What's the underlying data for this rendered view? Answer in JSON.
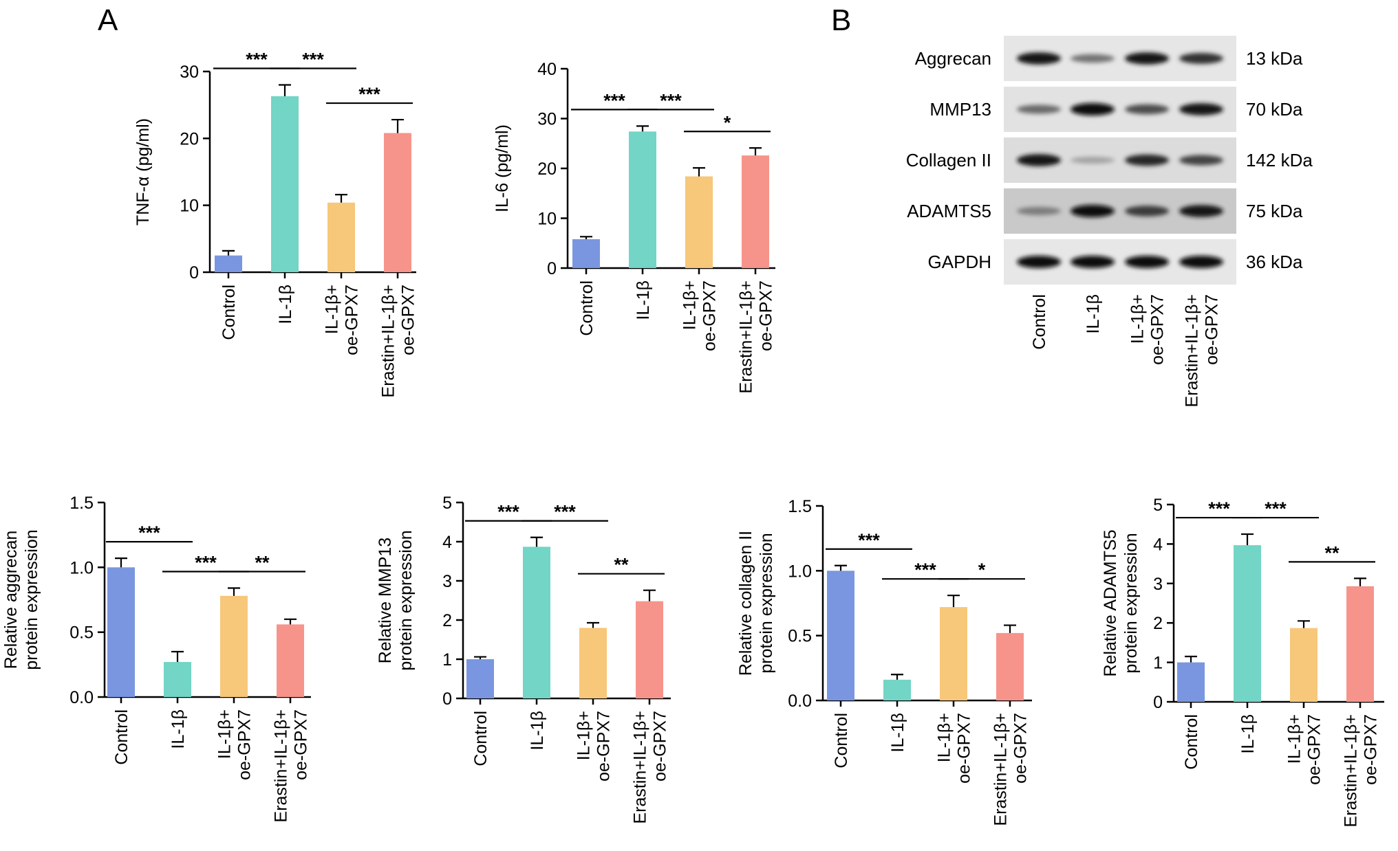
{
  "panels": {
    "a": "A",
    "b": "B"
  },
  "colors": {
    "Control": "#7a96e0",
    "IL-1β": "#72d5c6",
    "IL-1β+\noe-GPX7": "#f7c77a",
    "Erastin+IL-1β+\noe-GPX7": "#f6948b"
  },
  "chart_data": [
    {
      "type": "bar",
      "ylabel": "TNF-α (pg/ml)",
      "categories": [
        "Control",
        "IL-1β",
        "IL-1β+\noe-GPX7",
        "Erastin+IL-1β+\noe-GPX7"
      ],
      "values": [
        2.5,
        26.3,
        10.4,
        20.8
      ],
      "errors": [
        0.7,
        1.7,
        1.2,
        2.0
      ],
      "ylim": [
        0,
        30
      ],
      "yticks": [
        0,
        10,
        20,
        30
      ],
      "significance": [
        {
          "from": 0,
          "to": 1,
          "label": "***"
        },
        {
          "from": 1,
          "to": 2,
          "label": "***"
        },
        {
          "from": 2,
          "to": 3,
          "label": "***"
        }
      ]
    },
    {
      "type": "bar",
      "ylabel": "IL-6 (pg/ml)",
      "categories": [
        "Control",
        "IL-1β",
        "IL-1β+\noe-GPX7",
        "Erastin+IL-1β+\noe-GPX7"
      ],
      "values": [
        5.8,
        27.4,
        18.4,
        22.6
      ],
      "errors": [
        0.5,
        1.1,
        1.7,
        1.5
      ],
      "ylim": [
        0,
        40
      ],
      "yticks": [
        0,
        10,
        20,
        30,
        40
      ],
      "significance": [
        {
          "from": 0,
          "to": 1,
          "label": "***"
        },
        {
          "from": 1,
          "to": 2,
          "label": "***"
        },
        {
          "from": 2,
          "to": 3,
          "label": "*"
        }
      ]
    },
    {
      "type": "bar",
      "ylabel": "Relative aggrecan\nprotein expression",
      "categories": [
        "Control",
        "IL-1β",
        "IL-1β+\noe-GPX7",
        "Erastin+IL-1β+\noe-GPX7"
      ],
      "values": [
        1.0,
        0.27,
        0.78,
        0.56
      ],
      "errors": [
        0.07,
        0.08,
        0.06,
        0.04
      ],
      "ylim": [
        0,
        1.5
      ],
      "yticks": [
        "0.0",
        "0.5",
        "1.0",
        "1.5"
      ],
      "significance": [
        {
          "from": 0,
          "to": 1,
          "label": "***"
        },
        {
          "from": 1,
          "to": 2,
          "label": "***"
        },
        {
          "from": 2,
          "to": 3,
          "label": "**"
        }
      ]
    },
    {
      "type": "bar",
      "ylabel": "Relative MMP13\nprotein expression",
      "categories": [
        "Control",
        "IL-1β",
        "IL-1β+\noe-GPX7",
        "Erastin+IL-1β+\noe-GPX7"
      ],
      "values": [
        1.0,
        3.87,
        1.8,
        2.48
      ],
      "errors": [
        0.06,
        0.24,
        0.13,
        0.28
      ],
      "ylim": [
        0,
        5
      ],
      "yticks": [
        0,
        1,
        2,
        3,
        4,
        5
      ],
      "significance": [
        {
          "from": 0,
          "to": 1,
          "label": "***"
        },
        {
          "from": 1,
          "to": 2,
          "label": "***"
        },
        {
          "from": 2,
          "to": 3,
          "label": "**"
        }
      ]
    },
    {
      "type": "bar",
      "ylabel": "Relative collagen II\nprotein expression",
      "categories": [
        "Control",
        "IL-1β",
        "IL-1β+\noe-GPX7",
        "Erastin+IL-1β+\noe-GPX7"
      ],
      "values": [
        1.0,
        0.16,
        0.72,
        0.52
      ],
      "errors": [
        0.04,
        0.04,
        0.09,
        0.06
      ],
      "ylim": [
        0,
        1.5
      ],
      "yticks": [
        "0.0",
        "0.5",
        "1.0",
        "1.5"
      ],
      "significance": [
        {
          "from": 0,
          "to": 1,
          "label": "***"
        },
        {
          "from": 1,
          "to": 2,
          "label": "***"
        },
        {
          "from": 2,
          "to": 3,
          "label": "*"
        }
      ]
    },
    {
      "type": "bar",
      "ylabel": "Relative ADAMTS5\nprotein expression",
      "categories": [
        "Control",
        "IL-1β",
        "IL-1β+\noe-GPX7",
        "Erastin+IL-1β+\noe-GPX7"
      ],
      "values": [
        1.0,
        3.97,
        1.87,
        2.93
      ],
      "errors": [
        0.15,
        0.28,
        0.18,
        0.2
      ],
      "ylim": [
        0,
        5
      ],
      "yticks": [
        0,
        1,
        2,
        3,
        4,
        5
      ],
      "significance": [
        {
          "from": 0,
          "to": 1,
          "label": "***"
        },
        {
          "from": 1,
          "to": 2,
          "label": "***"
        },
        {
          "from": 2,
          "to": 3,
          "label": "**"
        }
      ]
    }
  ],
  "western_blot": {
    "lanes": [
      "Control",
      "IL-1β",
      "IL-1β+\noe-GPX7",
      "Erastin+IL-1β+\noe-GPX7"
    ],
    "bands": [
      {
        "protein": "Aggrecan",
        "size": "13 kDa",
        "intensity": [
          0.95,
          0.45,
          0.95,
          0.8
        ]
      },
      {
        "protein": "MMP13",
        "size": "70 kDa",
        "intensity": [
          0.5,
          1.0,
          0.65,
          0.95
        ]
      },
      {
        "protein": "Collagen II",
        "size": "142 kDa",
        "intensity": [
          0.95,
          0.2,
          0.85,
          0.7
        ]
      },
      {
        "protein": "ADAMTS5",
        "size": "75 kDa",
        "intensity": [
          0.4,
          1.0,
          0.75,
          0.95
        ]
      },
      {
        "protein": "GAPDH",
        "size": "36 kDa",
        "intensity": [
          1.0,
          1.0,
          1.0,
          1.0
        ]
      }
    ]
  }
}
